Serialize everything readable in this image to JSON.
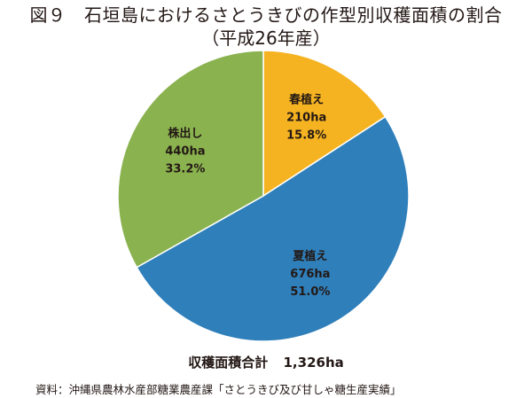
{
  "title": "図９　石垣島におけるさとうきびの作型別収穫面積の割合",
  "subtitle": "（平成26年産）",
  "chart_data": {
    "type": "pie",
    "slices": [
      {
        "label": "春植え",
        "value": 210,
        "unit": "ha",
        "percent": "15.8%",
        "color": "#f5b321"
      },
      {
        "label": "夏植え",
        "value": 676,
        "unit": "ha",
        "percent": "51.0%",
        "color": "#2f7fba"
      },
      {
        "label": "株出し",
        "value": 440,
        "unit": "ha",
        "percent": "33.2%",
        "color": "#8ab24f"
      }
    ],
    "start": "12 o'clock",
    "direction": "clockwise",
    "legend": "none",
    "labels_inside": true
  },
  "total": {
    "label": "収穫面積合計",
    "value": "1,326ha"
  },
  "source": "資料：沖縄県農林水産部糖業農産課「さとうきび及び甘しゃ糖生産実績」"
}
